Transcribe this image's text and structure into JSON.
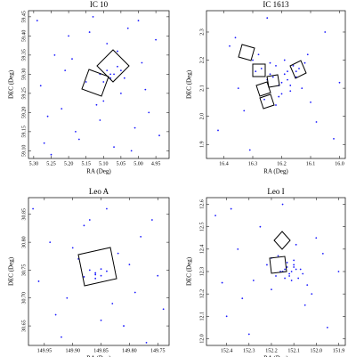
{
  "chart_data": [
    {
      "type": "scatter",
      "title": "IC 10",
      "x_label": "RA (Deg)",
      "y_label": "DEC (Deg)",
      "color": "#1a1aff",
      "xlim": [
        5.315,
        4.912
      ],
      "ylim": [
        59.08,
        59.466
      ],
      "xticks": [
        {
          "value": 5.3,
          "label": "5.30"
        },
        5.25,
        {
          "value": 5.2,
          "label": "5.20"
        },
        5.15,
        {
          "value": 5.1,
          "label": "5.10"
        },
        5.05,
        {
          "value": 5.0,
          "label": "5.00"
        },
        4.95
      ],
      "yticks": [
        {
          "value": 59.1,
          "label": "59.10"
        },
        59.15,
        {
          "value": 59.2,
          "label": "59.20"
        },
        59.25,
        {
          "value": 59.3,
          "label": "59.30"
        },
        59.35,
        {
          "value": 59.4,
          "label": "59.40"
        },
        59.45
      ],
      "x": [
        5.29,
        5.27,
        5.24,
        5.22,
        5.2,
        5.18,
        5.15,
        5.13,
        5.11,
        5.09,
        5.07,
        5.05,
        5.03,
        5.01,
        4.99,
        4.97,
        4.95,
        5.28,
        5.25,
        5.21,
        5.17,
        5.14,
        5.1,
        5.06,
        5.02,
        4.98,
        4.94,
        5.26,
        5.19,
        5.12,
        5.08,
        5.04,
        5.0,
        5.09,
        5.08,
        5.07,
        5.1,
        5.06,
        5.11,
        5.05
      ],
      "y": [
        59.44,
        59.12,
        59.35,
        59.21,
        59.4,
        59.15,
        59.28,
        59.45,
        59.18,
        59.38,
        59.11,
        59.25,
        59.42,
        59.16,
        59.33,
        59.2,
        59.39,
        59.27,
        59.09,
        59.31,
        59.13,
        59.41,
        59.23,
        59.36,
        59.1,
        59.26,
        59.14,
        59.19,
        59.34,
        59.22,
        59.3,
        59.29,
        59.44,
        59.31,
        59.29,
        59.3,
        59.28,
        59.32,
        59.3,
        59.31
      ]
    },
    {
      "type": "scatter",
      "title": "IC 1613",
      "x_label": "RA (Deg)",
      "y_label": "DEC (Deg)",
      "color": "#1a1aff",
      "xlim": [
        16.46,
        15.98
      ],
      "ylim": [
        1.85,
        2.376
      ],
      "xticks": [
        16.4,
        16.3,
        16.2,
        16.1,
        {
          "value": 16.0,
          "label": "16.0"
        }
      ],
      "yticks": [
        1.9,
        {
          "value": 2.0,
          "label": "2.0"
        },
        2.1,
        2.2,
        2.3
      ],
      "x": [
        16.42,
        16.38,
        16.35,
        16.3,
        16.27,
        16.25,
        16.22,
        16.2,
        16.18,
        16.15,
        16.12,
        16.1,
        16.05,
        16.02,
        16.0,
        16.33,
        16.28,
        16.24,
        16.21,
        16.19,
        16.17,
        16.14,
        16.26,
        16.23,
        16.2,
        16.16,
        16.13,
        16.29,
        16.22,
        16.18,
        16.24,
        16.19,
        16.11,
        16.36,
        16.08,
        16.31,
        16.21,
        16.17,
        16.25,
        16.15
      ],
      "y": [
        1.95,
        2.25,
        2.1,
        2.2,
        2.17,
        2.13,
        2.18,
        2.08,
        2.16,
        2.14,
        2.19,
        2.05,
        2.3,
        1.92,
        2.12,
        2.02,
        2.22,
        2.15,
        2.11,
        2.2,
        2.09,
        2.17,
        2.06,
        2.14,
        2.12,
        2.18,
        2.1,
        2.16,
        2.04,
        2.13,
        2.19,
        2.15,
        2.22,
        2.28,
        1.98,
        1.88,
        2.07,
        2.11,
        2.35,
        2.16
      ]
    },
    {
      "type": "scatter",
      "title": "Leo A",
      "x_label": "RA (Deg)",
      "y_label": "DEC (Deg)",
      "color": "#1a1aff",
      "xlim": [
        149.978,
        149.73
      ],
      "ylim": [
        30.615,
        30.88
      ],
      "xticks": [
        149.95,
        {
          "value": 149.9,
          "label": "149.90"
        },
        149.85,
        {
          "value": 149.8,
          "label": "149.80"
        },
        149.75
      ],
      "yticks": [
        30.65,
        {
          "value": 30.7,
          "label": "30.70"
        },
        30.75,
        {
          "value": 30.8,
          "label": "30.80"
        },
        30.85
      ],
      "x": [
        149.97,
        149.94,
        149.91,
        149.88,
        149.85,
        149.82,
        149.79,
        149.76,
        149.74,
        149.96,
        149.92,
        149.89,
        149.84,
        149.81,
        149.78,
        149.75,
        149.93,
        149.87,
        149.83,
        149.8,
        149.86,
        149.87,
        149.85,
        149.86,
        149.84,
        149.88,
        149.85,
        149.86,
        149.9,
        149.77
      ],
      "y": [
        30.86,
        30.8,
        30.7,
        30.83,
        30.66,
        30.78,
        30.71,
        30.84,
        30.68,
        30.73,
        30.63,
        30.77,
        30.86,
        30.65,
        30.81,
        30.74,
        30.67,
        30.84,
        30.69,
        30.76,
        30.745,
        30.75,
        30.74,
        30.742,
        30.748,
        30.738,
        30.752,
        30.735,
        30.79,
        30.62
      ]
    },
    {
      "type": "scatter",
      "title": "Leo I",
      "x_label": "RA (Deg)",
      "y_label": "DEC (Deg)",
      "color": "#1a1aff",
      "xlim": [
        152.49,
        151.87
      ],
      "ylim": [
        11.97,
        12.63
      ],
      "xticks": [
        152.4,
        152.3,
        152.2,
        152.1,
        {
          "value": 152.0,
          "label": "152.0"
        },
        151.9
      ],
      "yticks": [
        {
          "value": 12.0,
          "label": "12.0"
        },
        12.1,
        12.2,
        12.3,
        12.4,
        12.5,
        12.6
      ],
      "x": [
        152.45,
        152.4,
        152.35,
        152.3,
        152.25,
        152.2,
        152.15,
        152.1,
        152.05,
        152.0,
        151.95,
        151.9,
        152.42,
        152.33,
        152.22,
        152.18,
        152.14,
        152.12,
        152.1,
        152.08,
        152.16,
        152.13,
        152.11,
        152.09,
        152.06,
        152.2,
        152.04,
        152.15,
        152.12,
        152.1,
        152.07,
        152.14,
        152.11,
        152.17,
        152.02,
        152.28,
        151.97,
        152.38,
        152.09,
        152.13
      ],
      "y": [
        12.55,
        12.1,
        12.4,
        12.02,
        12.5,
        12.22,
        12.6,
        12.35,
        12.15,
        12.45,
        12.05,
        12.3,
        12.25,
        12.18,
        12.33,
        12.28,
        12.31,
        12.29,
        12.32,
        12.27,
        12.3,
        12.34,
        12.26,
        12.31,
        12.29,
        12.36,
        12.24,
        12.3,
        12.28,
        12.33,
        12.31,
        12.27,
        12.3,
        12.37,
        12.2,
        12.26,
        12.38,
        12.58,
        12.42,
        12.32
      ]
    }
  ]
}
